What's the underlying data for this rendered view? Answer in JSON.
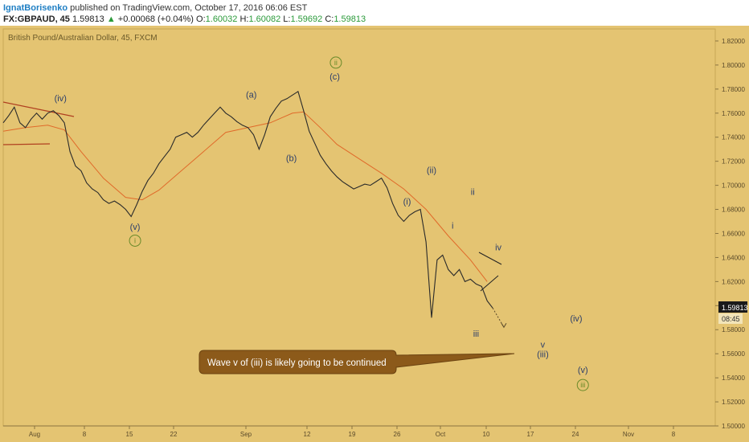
{
  "header": {
    "author": "IgnatBorisenko",
    "published_text": "published on TradingView.com, October 17, 2016 06:06 EST",
    "symbol": "FX:GBPAUD, 45",
    "last": "1.59813",
    "arrow": "▲",
    "change": "+0.00068 (+0.04%)",
    "o_label": "O:",
    "o_value": "1.60032",
    "h_label": "H:",
    "h_value": "1.60082",
    "l_label": "L:",
    "l_value": "1.59692",
    "c_label": "C:",
    "c_value": "1.59813"
  },
  "colors": {
    "background": "#e4c472",
    "candles": "#2a2a2a",
    "moving_average": "#e06a2a",
    "trendline": "#b04020",
    "wave_label": "#2c3e6a",
    "wave_label_green": "#6a8a2a",
    "callout": "#8c5a1a",
    "price_badge": "#1a1a1a"
  },
  "chart_data": {
    "type": "line",
    "title": "British Pound/Australian Dollar, 45, FXCM",
    "xlabel": "",
    "ylabel": "",
    "ylim": [
      1.5,
      1.83
    ],
    "y_ticks": [
      "1.82000",
      "1.80000",
      "1.78000",
      "1.76000",
      "1.74000",
      "1.72000",
      "1.70000",
      "1.68000",
      "1.66000",
      "1.64000",
      "1.62000",
      "1.60000",
      "1.58000",
      "1.56000",
      "1.54000",
      "1.52000",
      "1.50000"
    ],
    "x_ticks": [
      "Aug",
      "8",
      "15",
      "22",
      "Sep",
      "12",
      "19",
      "26",
      "Oct",
      "10",
      "17",
      "24",
      "Nov",
      "8"
    ],
    "price_badge": "1.59813",
    "time_badge": "08:45",
    "series": [
      {
        "values": [
          [
            0,
            1.752
          ],
          [
            1,
            1.758
          ],
          [
            2,
            1.765
          ],
          [
            3,
            1.752
          ],
          [
            4,
            1.748
          ],
          [
            5,
            1.755
          ],
          [
            6,
            1.76
          ],
          [
            7,
            1.755
          ],
          [
            8,
            1.76
          ],
          [
            9,
            1.762
          ],
          [
            10,
            1.758
          ],
          [
            11,
            1.752
          ],
          [
            12,
            1.728
          ],
          [
            13,
            1.716
          ],
          [
            14,
            1.712
          ],
          [
            15,
            1.702
          ],
          [
            16,
            1.697
          ],
          [
            17,
            1.694
          ],
          [
            18,
            1.688
          ],
          [
            19,
            1.685
          ],
          [
            20,
            1.687
          ],
          [
            21,
            1.684
          ],
          [
            22,
            1.68
          ],
          [
            23,
            1.674
          ],
          [
            24,
            1.684
          ],
          [
            25,
            1.695
          ],
          [
            26,
            1.704
          ],
          [
            27,
            1.71
          ],
          [
            28,
            1.718
          ],
          [
            29,
            1.724
          ],
          [
            30,
            1.73
          ],
          [
            31,
            1.74
          ],
          [
            32,
            1.742
          ],
          [
            33,
            1.744
          ],
          [
            34,
            1.74
          ],
          [
            35,
            1.744
          ],
          [
            36,
            1.75
          ],
          [
            37,
            1.755
          ],
          [
            38,
            1.76
          ],
          [
            39,
            1.765
          ],
          [
            40,
            1.76
          ],
          [
            41,
            1.757
          ],
          [
            42,
            1.753
          ],
          [
            43,
            1.75
          ],
          [
            44,
            1.748
          ],
          [
            45,
            1.742
          ],
          [
            46,
            1.73
          ],
          [
            47,
            1.742
          ],
          [
            48,
            1.757
          ],
          [
            49,
            1.764
          ],
          [
            50,
            1.77
          ],
          [
            51,
            1.772
          ],
          [
            52,
            1.775
          ],
          [
            53,
            1.778
          ],
          [
            54,
            1.762
          ],
          [
            55,
            1.745
          ],
          [
            56,
            1.735
          ],
          [
            57,
            1.725
          ],
          [
            58,
            1.718
          ],
          [
            59,
            1.712
          ],
          [
            60,
            1.707
          ],
          [
            61,
            1.703
          ],
          [
            62,
            1.7
          ],
          [
            63,
            1.697
          ],
          [
            64,
            1.699
          ],
          [
            65,
            1.701
          ],
          [
            66,
            1.7
          ],
          [
            67,
            1.703
          ],
          [
            68,
            1.706
          ],
          [
            69,
            1.698
          ],
          [
            70,
            1.685
          ],
          [
            71,
            1.675
          ],
          [
            72,
            1.67
          ],
          [
            73,
            1.675
          ],
          [
            74,
            1.678
          ],
          [
            75,
            1.68
          ],
          [
            76,
            1.653
          ],
          [
            77,
            1.59
          ],
          [
            78,
            1.638
          ],
          [
            79,
            1.642
          ],
          [
            80,
            1.63
          ],
          [
            81,
            1.625
          ],
          [
            82,
            1.63
          ],
          [
            83,
            1.62
          ],
          [
            84,
            1.622
          ],
          [
            85,
            1.618
          ],
          [
            86,
            1.616
          ],
          [
            87,
            1.604
          ],
          [
            88,
            1.598
          ]
        ]
      }
    ],
    "moving_average": [
      [
        0,
        1.745
      ],
      [
        4,
        1.748
      ],
      [
        8,
        1.75
      ],
      [
        11,
        1.746
      ],
      [
        14,
        1.728
      ],
      [
        18,
        1.706
      ],
      [
        22,
        1.69
      ],
      [
        25,
        1.688
      ],
      [
        28,
        1.696
      ],
      [
        32,
        1.712
      ],
      [
        36,
        1.728
      ],
      [
        40,
        1.744
      ],
      [
        44,
        1.748
      ],
      [
        48,
        1.752
      ],
      [
        52,
        1.76
      ],
      [
        54,
        1.761
      ],
      [
        57,
        1.748
      ],
      [
        60,
        1.734
      ],
      [
        64,
        1.722
      ],
      [
        68,
        1.71
      ],
      [
        72,
        1.697
      ],
      [
        76,
        1.68
      ],
      [
        80,
        1.658
      ],
      [
        84,
        1.638
      ],
      [
        87,
        1.62
      ]
    ],
    "projection": [
      [
        88,
        1.598
      ],
      [
        90,
        1.582
      ]
    ],
    "annotations": [
      {
        "text": "(iv)",
        "x": 10.3,
        "y": 1.77,
        "kind": "label"
      },
      {
        "text": "(v)",
        "x": 23.7,
        "y": 1.663,
        "kind": "label"
      },
      {
        "text": "i",
        "x": 23.7,
        "y": 1.652,
        "kind": "circle"
      },
      {
        "text": "(a)",
        "x": 44.6,
        "y": 1.773,
        "kind": "label"
      },
      {
        "text": "(b)",
        "x": 51.8,
        "y": 1.72,
        "kind": "label"
      },
      {
        "text": "(c)",
        "x": 59.6,
        "y": 1.788,
        "kind": "label"
      },
      {
        "text": "ii",
        "x": 59.8,
        "y": 1.8,
        "kind": "circle"
      },
      {
        "text": "(ii)",
        "x": 77.0,
        "y": 1.71,
        "kind": "label"
      },
      {
        "text": "(i)",
        "x": 72.6,
        "y": 1.684,
        "kind": "label"
      },
      {
        "text": "ii",
        "x": 84.4,
        "y": 1.692,
        "kind": "label"
      },
      {
        "text": "i",
        "x": 80.8,
        "y": 1.664,
        "kind": "label"
      },
      {
        "text": "iv",
        "x": 89.0,
        "y": 1.646,
        "kind": "label"
      },
      {
        "text": "iii",
        "x": 85.0,
        "y": 1.574,
        "kind": "label"
      },
      {
        "text": "v",
        "x": 97.0,
        "y": 1.565,
        "kind": "label"
      },
      {
        "text": "(iii)",
        "x": 97.0,
        "y": 1.557,
        "kind": "label"
      },
      {
        "text": "(iv)",
        "x": 103.0,
        "y": 1.587,
        "kind": "label"
      },
      {
        "text": "(v)",
        "x": 104.2,
        "y": 1.544,
        "kind": "label"
      },
      {
        "text": "iii",
        "x": 104.2,
        "y": 1.532,
        "kind": "circle"
      }
    ],
    "callout_text": "Wave v of (iii) is likely going to be continued"
  }
}
